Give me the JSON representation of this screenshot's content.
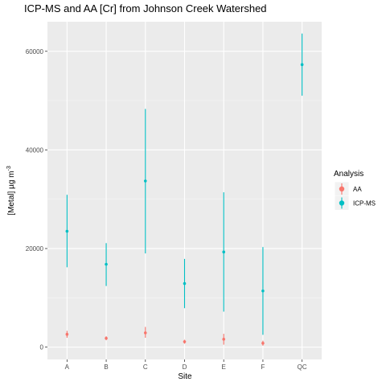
{
  "chart_data": {
    "type": "scatter",
    "title": "ICP-MS and AA [Cr] from Johnson Creek Watershed",
    "xlabel": "Site",
    "ylabel": "[Metal] µg m",
    "ylabel_superscript": "-3",
    "categories": [
      "A",
      "B",
      "C",
      "D",
      "E",
      "F",
      "QC"
    ],
    "yticks": [
      0,
      20000,
      40000,
      60000
    ],
    "ytick_labels": [
      "0",
      "20000",
      "40000",
      "60000"
    ],
    "ylim": [
      -2500,
      66000
    ],
    "grid": true,
    "legend": {
      "title": "Analysis",
      "position": "right"
    },
    "series": [
      {
        "name": "AA",
        "color": "#F8766D",
        "points": [
          {
            "x": "A",
            "y": 2600,
            "ymin": 1900,
            "ymax": 3300
          },
          {
            "x": "B",
            "y": 1800,
            "ymin": 1400,
            "ymax": 2200
          },
          {
            "x": "C",
            "y": 2900,
            "ymin": 1900,
            "ymax": 4100
          },
          {
            "x": "D",
            "y": 1100,
            "ymin": 700,
            "ymax": 1500
          },
          {
            "x": "E",
            "y": 1600,
            "ymin": 500,
            "ymax": 2700
          },
          {
            "x": "F",
            "y": 800,
            "ymin": 300,
            "ymax": 1300
          }
        ]
      },
      {
        "name": "ICP-MS",
        "color": "#00BFC4",
        "points": [
          {
            "x": "A",
            "y": 23500,
            "ymin": 16200,
            "ymax": 30900
          },
          {
            "x": "B",
            "y": 16800,
            "ymin": 12400,
            "ymax": 21100
          },
          {
            "x": "C",
            "y": 33700,
            "ymin": 19000,
            "ymax": 48300
          },
          {
            "x": "D",
            "y": 12900,
            "ymin": 7900,
            "ymax": 17900
          },
          {
            "x": "E",
            "y": 19300,
            "ymin": 7200,
            "ymax": 31400
          },
          {
            "x": "F",
            "y": 11400,
            "ymin": 2500,
            "ymax": 20300
          },
          {
            "x": "QC",
            "y": 57300,
            "ymin": 51000,
            "ymax": 63600
          }
        ]
      }
    ]
  }
}
